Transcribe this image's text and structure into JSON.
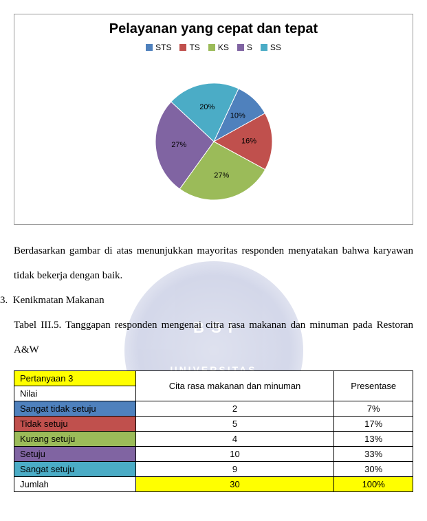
{
  "chart": {
    "type": "pie",
    "title": "Pelayanan yang cepat dan tepat",
    "title_fontsize": 20,
    "title_weight": "bold",
    "background_color": "#ffffff",
    "border_color": "#999999",
    "legend": [
      {
        "label": "STS",
        "color": "#4f81bd"
      },
      {
        "label": "TS",
        "color": "#c0504d"
      },
      {
        "label": "KS",
        "color": "#9bbb59"
      },
      {
        "label": "S",
        "color": "#8064a2"
      },
      {
        "label": "SS",
        "color": "#4bacc6"
      }
    ],
    "slices": [
      {
        "label": "10%",
        "value": 10,
        "color": "#4f81bd"
      },
      {
        "label": "16%",
        "value": 16,
        "color": "#c0504d"
      },
      {
        "label": "27%",
        "value": 27,
        "color": "#9bbb59"
      },
      {
        "label": "27%",
        "value": 27,
        "color": "#8064a2"
      },
      {
        "label": "20%",
        "value": 20,
        "color": "#4bacc6"
      }
    ],
    "label_fontsize": 11,
    "label_color": "#000000",
    "pie_radius": 85,
    "start_angle_deg": -65
  },
  "paragraphs": {
    "p1": "Berdasarkan gambar di atas menunjukkan mayoritas responden menyatakan bahwa karyawan tidak bekerja dengan baik.",
    "list_number": "3.",
    "list_heading": "Kenikmatan Makanan",
    "p2": "Tabel III.5. Tanggapan responden mengenai citra rasa makanan dan minuman pada Restoran A&W"
  },
  "table": {
    "header_left_top": "Pertanyaan 3",
    "header_left_bottom": "Nilai",
    "header_mid": "Cita rasa makanan dan minuman",
    "header_right": "Presentase",
    "rows": [
      {
        "label": "Sangat tidak setuju",
        "value": "2",
        "pct": "7%",
        "color": "#4f81bd"
      },
      {
        "label": "Tidak setuju",
        "value": "5",
        "pct": "17%",
        "color": "#c0504d"
      },
      {
        "label": "Kurang setuju",
        "value": "4",
        "pct": "13%",
        "color": "#9bbb59"
      },
      {
        "label": "Setuju",
        "value": "10",
        "pct": "33%",
        "color": "#8064a2"
      },
      {
        "label": "Sangat setuju",
        "value": "9",
        "pct": "30%",
        "color": "#4bacc6"
      }
    ],
    "total_label": "Jumlah",
    "total_value": "30",
    "total_pct": "100%",
    "total_highlight": "#ffff00",
    "header_highlight": "#ffff00"
  },
  "watermark": {
    "bsi": "B S I",
    "univ": "UNIVERSITAS"
  }
}
